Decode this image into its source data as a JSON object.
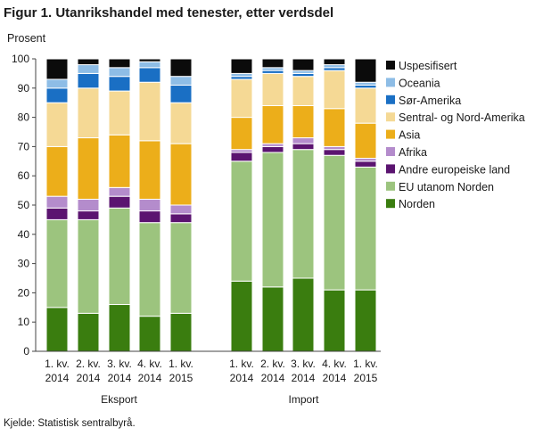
{
  "figure": {
    "title": "Figur 1. Utanrikshandel med tenester, etter verdsdel",
    "y_unit_label": "Prosent",
    "source": "Kjelde: Statistisk sentralbyrå."
  },
  "chart_data": {
    "type": "bar",
    "stacked": true,
    "ylim": [
      0,
      100
    ],
    "yticks": [
      0,
      10,
      20,
      30,
      40,
      50,
      60,
      70,
      80,
      90,
      100
    ],
    "grid": false,
    "legend_position": "right",
    "categories": [
      [
        "1. kv.",
        "2014"
      ],
      [
        "2. kv.",
        "2014"
      ],
      [
        "3. kv.",
        "2014"
      ],
      [
        "4. kv.",
        "2014"
      ],
      [
        "1. kv.",
        "2015"
      ],
      [
        "1. kv.",
        "2014"
      ],
      [
        "2. kv.",
        "2014"
      ],
      [
        "3. kv.",
        "2014"
      ],
      [
        "4. kv.",
        "2014"
      ],
      [
        "1. kv.",
        "2015"
      ]
    ],
    "groups": [
      {
        "label": "Eksport",
        "indices": [
          0,
          1,
          2,
          3,
          4
        ]
      },
      {
        "label": "Import",
        "indices": [
          5,
          6,
          7,
          8,
          9
        ]
      }
    ],
    "series": [
      {
        "name": "Norden",
        "color": "#3a7d0f",
        "values": [
          15,
          13,
          16,
          12,
          13,
          24,
          22,
          25,
          21,
          21
        ]
      },
      {
        "name": "EU utanom Norden",
        "color": "#9cc47e",
        "values": [
          30,
          32,
          33,
          32,
          31,
          41,
          46,
          44,
          46,
          42
        ]
      },
      {
        "name": "Andre europeiske land",
        "color": "#5b1470",
        "values": [
          4,
          3,
          4,
          4,
          3,
          3,
          2,
          2,
          2,
          2
        ]
      },
      {
        "name": "Afrika",
        "color": "#b48ccc",
        "values": [
          4,
          4,
          3,
          4,
          3,
          1,
          1,
          2,
          1,
          1
        ]
      },
      {
        "name": "Asia",
        "color": "#ecae1a",
        "values": [
          17,
          21,
          18,
          20,
          21,
          11,
          13,
          11,
          13,
          12
        ]
      },
      {
        "name": "Sentral- og Nord-Amerika",
        "color": "#f5d995",
        "values": [
          15,
          17,
          15,
          20,
          14,
          13,
          11,
          10,
          13,
          12
        ]
      },
      {
        "name": "Sør-Amerika",
        "color": "#1a6fc4",
        "values": [
          5,
          5,
          5,
          5,
          6,
          1,
          1,
          1,
          1,
          1
        ]
      },
      {
        "name": "Oceania",
        "color": "#8ebde6",
        "values": [
          3,
          3,
          3,
          2,
          3,
          1,
          1,
          1,
          1,
          1
        ]
      },
      {
        "name": "Uspesifisert",
        "color": "#0b0b0b",
        "values": [
          7,
          2,
          3,
          1,
          6,
          5,
          3,
          4,
          2,
          8
        ]
      }
    ]
  }
}
